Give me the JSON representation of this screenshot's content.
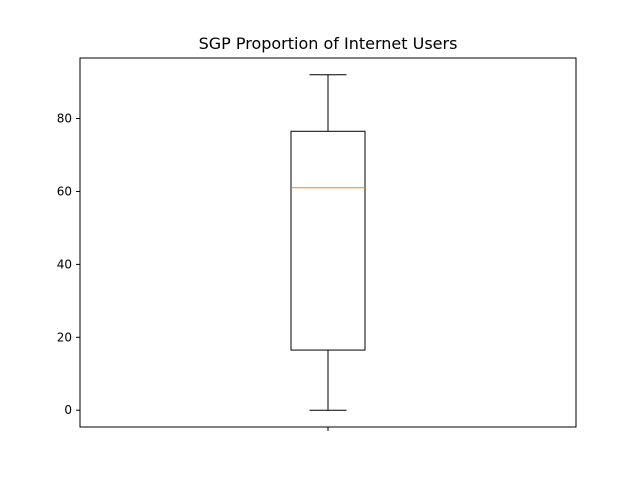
{
  "chart_data": {
    "type": "box",
    "title": "SGP Proportion of Internet Users",
    "xlabel": "",
    "ylabel": "",
    "ylim": [
      -4.6,
      96.6
    ],
    "yticks": [
      0,
      20,
      40,
      60,
      80
    ],
    "grid": false,
    "series": [
      {
        "whisker_low": 0.0,
        "q1": 16.5,
        "median": 61.0,
        "q3": 76.5,
        "whisker_high": 92.0
      }
    ]
  },
  "colors": {
    "box": "#000000",
    "median": "#ff7f0e",
    "axes": "#000000",
    "background": "#ffffff"
  }
}
